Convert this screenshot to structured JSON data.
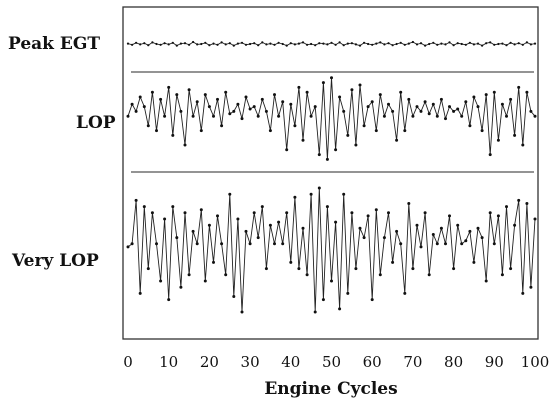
{
  "chart_data": {
    "type": "line",
    "xlabel": "Engine Cycles",
    "xlim": [
      0,
      100
    ],
    "x_ticks": [
      0,
      10,
      20,
      30,
      40,
      50,
      60,
      70,
      80,
      90,
      100
    ],
    "x": [
      0,
      1,
      2,
      3,
      4,
      5,
      6,
      7,
      8,
      9,
      10,
      11,
      12,
      13,
      14,
      15,
      16,
      17,
      18,
      19,
      20,
      21,
      22,
      23,
      24,
      25,
      26,
      27,
      28,
      29,
      30,
      31,
      32,
      33,
      34,
      35,
      36,
      37,
      38,
      39,
      40,
      41,
      42,
      43,
      44,
      45,
      46,
      47,
      48,
      49,
      50,
      51,
      52,
      53,
      54,
      55,
      56,
      57,
      58,
      59,
      60,
      61,
      62,
      63,
      64,
      65,
      66,
      67,
      68,
      69,
      70,
      71,
      72,
      73,
      74,
      75,
      76,
      77,
      78,
      79,
      80,
      81,
      82,
      83,
      84,
      85,
      86,
      87,
      88,
      89,
      90,
      91,
      92,
      93,
      94,
      95,
      96,
      97,
      98,
      99,
      100
    ],
    "ylim": [
      -1,
      1
    ],
    "series": [
      {
        "name": "Peak EGT",
        "values": [
          0.05,
          -0.1,
          0.15,
          -0.05,
          0.1,
          -0.15,
          0.2,
          0,
          -0.1,
          0.1,
          -0.05,
          0.15,
          -0.2,
          0.05,
          0.1,
          -0.1,
          0.25,
          -0.05,
          0,
          0.15,
          -0.15,
          0.05,
          -0.1,
          0.2,
          -0.05,
          0.1,
          -0.2,
          0.05,
          0.15,
          -0.1,
          0,
          0.1,
          -0.15,
          0.2,
          -0.05,
          0.05,
          -0.1,
          0.15,
          0,
          -0.2,
          0.1,
          -0.05,
          0.05,
          0.2,
          -0.1,
          0,
          -0.15,
          0.1,
          0.05,
          -0.05,
          0.15,
          -0.1,
          0.2,
          -0.15,
          0.05,
          0.1,
          -0.05,
          -0.2,
          0.15,
          0,
          -0.1,
          0.05,
          0.2,
          -0.05,
          0.1,
          -0.15,
          0,
          0.15,
          -0.1,
          0.05,
          0.25,
          -0.05,
          0.1,
          -0.2,
          0,
          0.15,
          -0.1,
          0.05,
          -0.05,
          0.2,
          -0.15,
          0.1,
          0,
          -0.1,
          0.15,
          -0.05,
          0.05,
          -0.2,
          0.1,
          0.2,
          -0.1,
          0,
          0.05,
          -0.15,
          0.15,
          -0.05,
          0.1,
          -0.1,
          0.2,
          -0.05,
          0.05
        ],
        "y_center_norm": 0.5
      },
      {
        "name": "LOP",
        "values": [
          0.1,
          0.35,
          0.2,
          0.5,
          0.3,
          -0.1,
          0.6,
          -0.2,
          0.45,
          0.1,
          0.7,
          -0.3,
          0.55,
          0.2,
          -0.5,
          0.65,
          0.1,
          0.4,
          -0.2,
          0.55,
          0.3,
          0.1,
          0.45,
          -0.1,
          0.6,
          0.15,
          0.2,
          0.35,
          0.05,
          0.5,
          0.25,
          0.3,
          0.1,
          0.45,
          0.2,
          -0.2,
          0.55,
          0.1,
          0.4,
          -0.6,
          0.35,
          -0.1,
          0.7,
          -0.4,
          0.6,
          0.1,
          0.3,
          -0.7,
          0.8,
          -0.8,
          0.9,
          -0.6,
          0.5,
          0.2,
          -0.3,
          0.65,
          -0.5,
          0.75,
          -0.1,
          0.3,
          0.4,
          -0.2,
          0.55,
          0.1,
          0.35,
          0.2,
          -0.4,
          0.6,
          -0.2,
          0.45,
          0.1,
          0.3,
          0.2,
          0.4,
          0.15,
          0.35,
          0.1,
          0.45,
          0.05,
          0.3,
          0.2,
          0.25,
          0.1,
          0.4,
          -0.1,
          0.5,
          0.3,
          -0.2,
          0.55,
          -0.7,
          0.6,
          -0.4,
          0.35,
          0.1,
          0.45,
          -0.3,
          0.7,
          -0.5,
          0.6,
          0.2,
          0.1
        ],
        "y_center_norm": 0.5
      },
      {
        "name": "Very LOP",
        "values": [
          0.05,
          0.1,
          0.8,
          -0.7,
          0.7,
          -0.3,
          0.6,
          0.1,
          -0.5,
          0.5,
          -0.8,
          0.7,
          0.2,
          -0.6,
          0.6,
          -0.4,
          0.3,
          0.1,
          0.65,
          -0.5,
          0.4,
          -0.2,
          0.55,
          0.1,
          -0.4,
          0.9,
          -0.75,
          0.5,
          -1.0,
          0.3,
          0.1,
          0.6,
          0.2,
          0.7,
          -0.3,
          0.4,
          0.1,
          0.45,
          0.1,
          0.6,
          -0.2,
          0.85,
          -0.3,
          0.35,
          -0.4,
          0.9,
          -1.0,
          1.0,
          -0.8,
          0.7,
          -0.5,
          0.45,
          -0.95,
          0.9,
          -0.7,
          0.6,
          -0.3,
          0.35,
          0.2,
          0.55,
          -0.8,
          0.65,
          -0.4,
          0.2,
          0.6,
          -0.2,
          0.3,
          0.1,
          -0.7,
          0.75,
          -0.3,
          0.4,
          0.05,
          0.6,
          -0.4,
          0.25,
          0.1,
          0.35,
          0.1,
          0.55,
          -0.3,
          0.4,
          0.1,
          0.15,
          0.3,
          -0.2,
          0.35,
          0.2,
          -0.5,
          0.6,
          0.1,
          0.55,
          -0.4,
          0.7,
          -0.3,
          0.4,
          0.8,
          -0.7,
          0.75,
          -0.6,
          0.5
        ],
        "y_center_norm": 0.5
      }
    ],
    "grid": false,
    "legend": "none"
  }
}
